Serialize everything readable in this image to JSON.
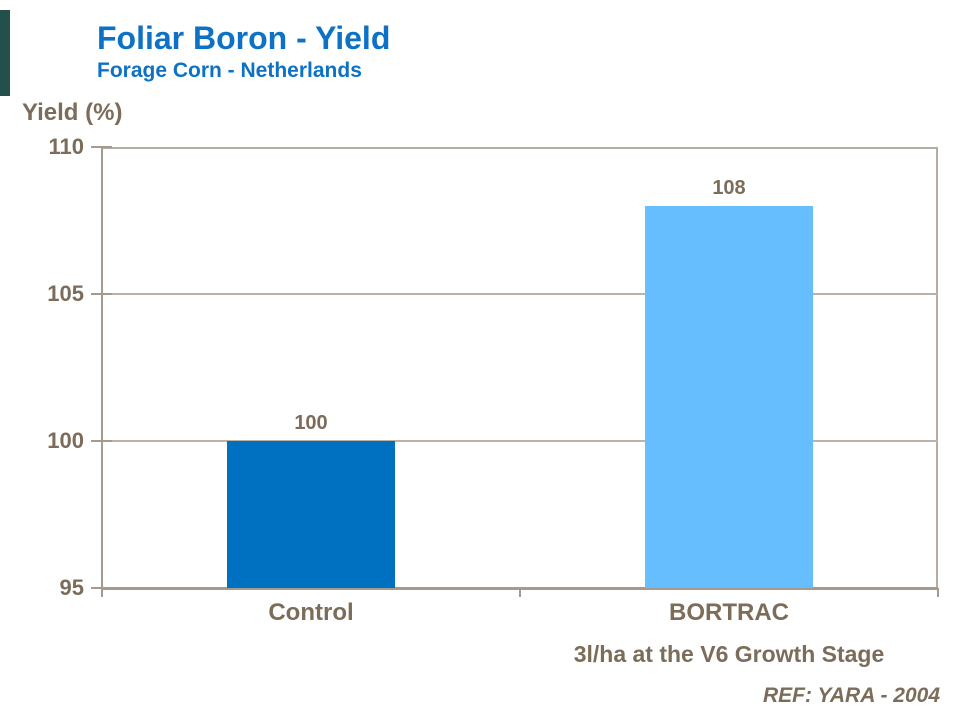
{
  "header": {
    "title": "Foliar Boron - Yield",
    "subtitle": "Forage Corn - Netherlands"
  },
  "chart_data": {
    "type": "bar",
    "title": "Foliar Boron - Yield",
    "subtitle": "Forage Corn - Netherlands",
    "y_axis_title": "Yield (%)",
    "xlabel": "",
    "ylabel": "Yield (%)",
    "categories": [
      "Control",
      "BORTRAC"
    ],
    "values": [
      100,
      108
    ],
    "value_labels": [
      "100",
      "108"
    ],
    "bar_colors": [
      "#0070c0",
      "#66beff"
    ],
    "yticks": [
      110,
      105,
      100,
      95
    ],
    "ylim": [
      95,
      110
    ],
    "grid": true,
    "legend": false
  },
  "footer": {
    "application_note": "3l/ha at the V6 Growth Stage",
    "reference": "REF: YARA - 2004"
  },
  "colors": {
    "title_blue": "#0d72c6",
    "axis_text_brown": "#7c6c5a",
    "gridline": "#bcb3a8",
    "axis_line": "#a49b8e",
    "plot_border": "#b6ada2",
    "bar_control": "#0070c0",
    "bar_bortrac": "#66beff",
    "accent_stripe": "#24504a"
  }
}
